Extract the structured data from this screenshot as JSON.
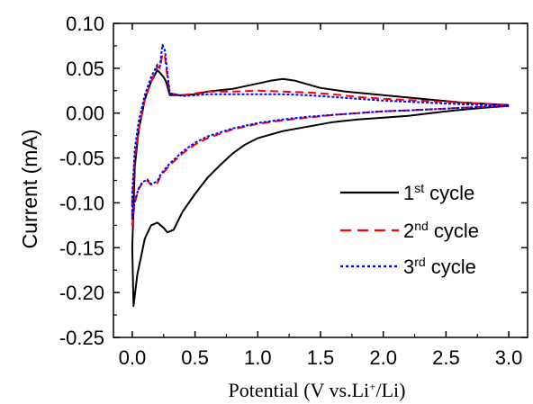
{
  "chart_data": {
    "type": "line",
    "xlabel": "Potential  (V vs.Li",
    "xlabel_sup": "+",
    "xlabel_tail": "/Li)",
    "ylabel": "Current (mA)",
    "xlim": [
      -0.15,
      3.15
    ],
    "ylim": [
      -0.25,
      0.1
    ],
    "xticks": [
      0.0,
      0.5,
      1.0,
      1.5,
      2.0,
      2.5,
      3.0
    ],
    "xtick_labels": [
      "0.0",
      "0.5",
      "1.0",
      "1.5",
      "2.0",
      "2.5",
      "3.0"
    ],
    "yticks": [
      -0.25,
      -0.2,
      -0.15,
      -0.1,
      -0.05,
      0.0,
      0.05,
      0.1
    ],
    "ytick_labels": [
      "-0.25",
      "-0.20",
      "-0.15",
      "-0.10",
      "-0.05",
      "0.00",
      "0.05",
      "0.10"
    ],
    "grid": false,
    "legend_position": "center-right",
    "series": [
      {
        "label_num": "1",
        "label_sup": "st",
        "label_text": "cycle",
        "color": "#000000",
        "dash": "solid",
        "points": [
          [
            3.0,
            0.008
          ],
          [
            2.8,
            0.006
          ],
          [
            2.5,
            0.002
          ],
          [
            2.2,
            -0.003
          ],
          [
            2.0,
            -0.005
          ],
          [
            1.8,
            -0.007
          ],
          [
            1.6,
            -0.01
          ],
          [
            1.4,
            -0.015
          ],
          [
            1.2,
            -0.02
          ],
          [
            1.0,
            -0.028
          ],
          [
            0.9,
            -0.035
          ],
          [
            0.8,
            -0.045
          ],
          [
            0.7,
            -0.058
          ],
          [
            0.6,
            -0.072
          ],
          [
            0.5,
            -0.09
          ],
          [
            0.4,
            -0.11
          ],
          [
            0.33,
            -0.13
          ],
          [
            0.28,
            -0.133
          ],
          [
            0.25,
            -0.128
          ],
          [
            0.2,
            -0.122
          ],
          [
            0.15,
            -0.125
          ],
          [
            0.1,
            -0.14
          ],
          [
            0.07,
            -0.16
          ],
          [
            0.04,
            -0.18
          ],
          [
            0.01,
            -0.215
          ],
          [
            0.0,
            -0.15
          ],
          [
            0.02,
            -0.06
          ],
          [
            0.05,
            -0.02
          ],
          [
            0.1,
            0.015
          ],
          [
            0.15,
            0.035
          ],
          [
            0.2,
            0.048
          ],
          [
            0.22,
            0.045
          ],
          [
            0.25,
            0.04
          ],
          [
            0.27,
            0.035
          ],
          [
            0.3,
            0.02
          ],
          [
            0.4,
            0.02
          ],
          [
            0.5,
            0.021
          ],
          [
            0.6,
            0.024
          ],
          [
            0.8,
            0.027
          ],
          [
            1.0,
            0.033
          ],
          [
            1.1,
            0.036
          ],
          [
            1.2,
            0.038
          ],
          [
            1.3,
            0.036
          ],
          [
            1.4,
            0.032
          ],
          [
            1.5,
            0.028
          ],
          [
            1.7,
            0.024
          ],
          [
            2.0,
            0.02
          ],
          [
            2.3,
            0.016
          ],
          [
            2.6,
            0.012
          ],
          [
            3.0,
            0.009
          ]
        ]
      },
      {
        "label_num": "2",
        "label_sup": "nd",
        "label_text": "cycle",
        "color": "#ff0000",
        "dash": "dash",
        "points": [
          [
            3.0,
            0.008
          ],
          [
            2.8,
            0.007
          ],
          [
            2.5,
            0.005
          ],
          [
            2.2,
            0.003
          ],
          [
            2.0,
            0.002
          ],
          [
            1.8,
            0.0
          ],
          [
            1.6,
            -0.002
          ],
          [
            1.4,
            -0.005
          ],
          [
            1.2,
            -0.008
          ],
          [
            1.0,
            -0.012
          ],
          [
            0.8,
            -0.018
          ],
          [
            0.6,
            -0.028
          ],
          [
            0.5,
            -0.035
          ],
          [
            0.4,
            -0.045
          ],
          [
            0.3,
            -0.058
          ],
          [
            0.25,
            -0.066
          ],
          [
            0.22,
            -0.072
          ],
          [
            0.2,
            -0.078
          ],
          [
            0.15,
            -0.08
          ],
          [
            0.12,
            -0.075
          ],
          [
            0.08,
            -0.078
          ],
          [
            0.05,
            -0.085
          ],
          [
            0.02,
            -0.1
          ],
          [
            0.0,
            -0.125
          ],
          [
            0.0,
            -0.1
          ],
          [
            0.02,
            -0.05
          ],
          [
            0.05,
            -0.02
          ],
          [
            0.1,
            0.015
          ],
          [
            0.15,
            0.035
          ],
          [
            0.2,
            0.052
          ],
          [
            0.22,
            0.05
          ],
          [
            0.24,
            0.066
          ],
          [
            0.26,
            0.063
          ],
          [
            0.28,
            0.04
          ],
          [
            0.3,
            0.022
          ],
          [
            0.4,
            0.02
          ],
          [
            0.5,
            0.022
          ],
          [
            0.6,
            0.024
          ],
          [
            0.8,
            0.024
          ],
          [
            1.0,
            0.025
          ],
          [
            1.2,
            0.024
          ],
          [
            1.4,
            0.023
          ],
          [
            1.6,
            0.021
          ],
          [
            1.8,
            0.018
          ],
          [
            2.0,
            0.016
          ],
          [
            2.3,
            0.014
          ],
          [
            2.6,
            0.012
          ],
          [
            3.0,
            0.009
          ]
        ]
      },
      {
        "label_num": "3",
        "label_sup": "rd",
        "label_text": "cycle",
        "color": "#0000ff",
        "dash": "dot",
        "points": [
          [
            3.0,
            0.008
          ],
          [
            2.8,
            0.007
          ],
          [
            2.5,
            0.005
          ],
          [
            2.2,
            0.003
          ],
          [
            2.0,
            0.002
          ],
          [
            1.8,
            0.0
          ],
          [
            1.6,
            -0.002
          ],
          [
            1.4,
            -0.004
          ],
          [
            1.2,
            -0.007
          ],
          [
            1.0,
            -0.011
          ],
          [
            0.8,
            -0.017
          ],
          [
            0.6,
            -0.026
          ],
          [
            0.5,
            -0.033
          ],
          [
            0.4,
            -0.043
          ],
          [
            0.3,
            -0.056
          ],
          [
            0.25,
            -0.064
          ],
          [
            0.22,
            -0.07
          ],
          [
            0.2,
            -0.076
          ],
          [
            0.15,
            -0.079
          ],
          [
            0.12,
            -0.074
          ],
          [
            0.08,
            -0.077
          ],
          [
            0.05,
            -0.084
          ],
          [
            0.02,
            -0.098
          ],
          [
            0.0,
            -0.118
          ],
          [
            0.0,
            -0.09
          ],
          [
            0.02,
            -0.04
          ],
          [
            0.05,
            -0.01
          ],
          [
            0.1,
            0.02
          ],
          [
            0.15,
            0.04
          ],
          [
            0.2,
            0.054
          ],
          [
            0.22,
            0.052
          ],
          [
            0.24,
            0.076
          ],
          [
            0.26,
            0.07
          ],
          [
            0.28,
            0.045
          ],
          [
            0.3,
            0.022
          ],
          [
            0.4,
            0.019
          ],
          [
            0.5,
            0.02
          ],
          [
            0.6,
            0.021
          ],
          [
            0.8,
            0.021
          ],
          [
            1.0,
            0.021
          ],
          [
            1.2,
            0.021
          ],
          [
            1.4,
            0.02
          ],
          [
            1.6,
            0.018
          ],
          [
            1.8,
            0.016
          ],
          [
            2.0,
            0.014
          ],
          [
            2.3,
            0.012
          ],
          [
            2.6,
            0.01
          ],
          [
            3.0,
            0.008
          ]
        ]
      }
    ]
  }
}
